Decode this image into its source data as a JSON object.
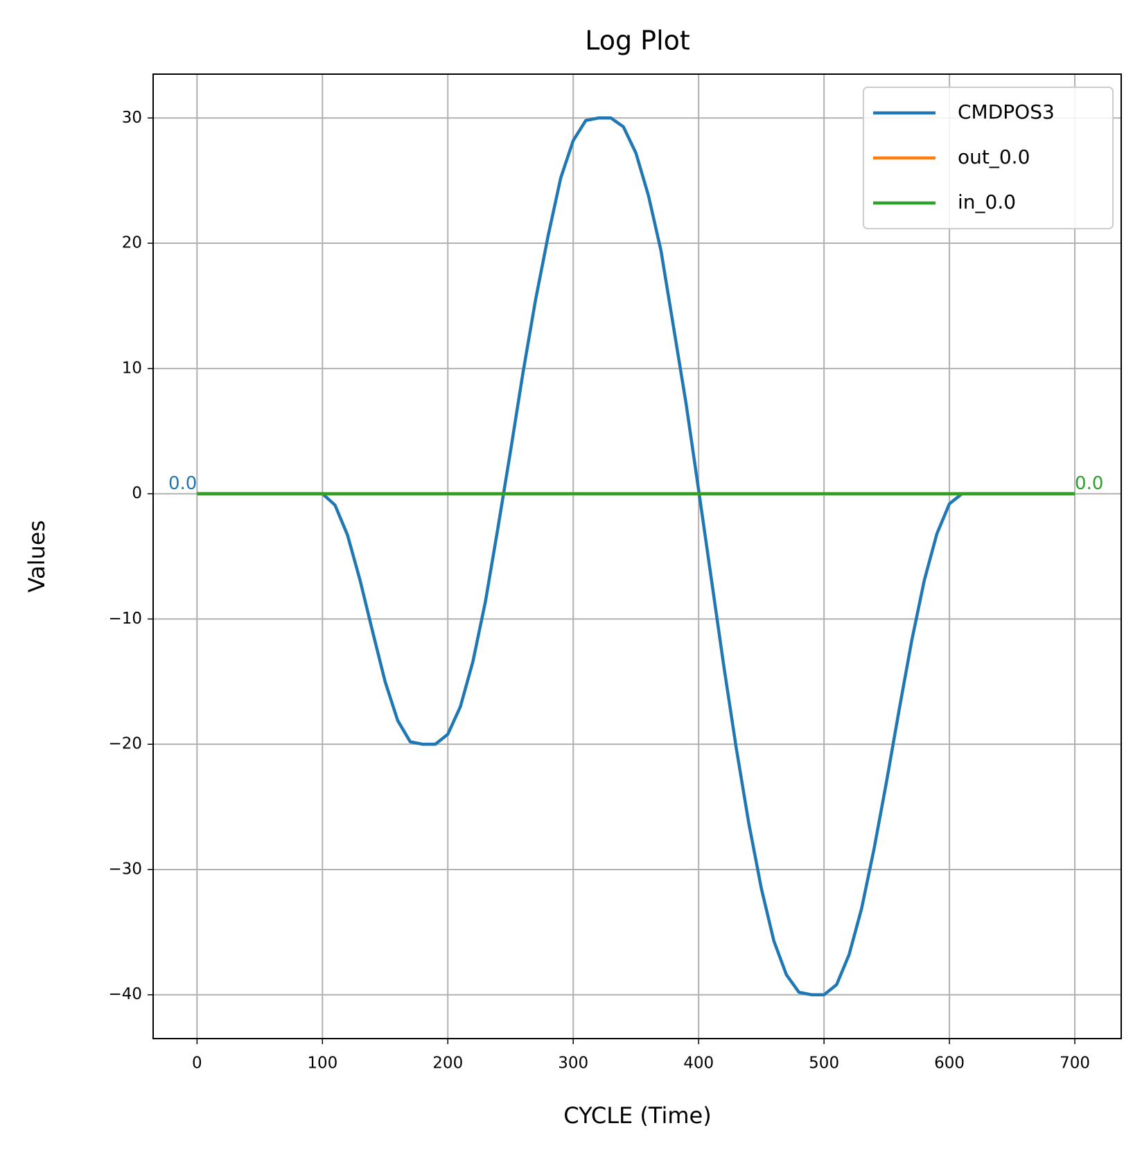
{
  "chart_data": {
    "type": "line",
    "title": "Log Plot",
    "x_label": "CYCLE (Time)",
    "y_label": "Values",
    "x": [
      0,
      10,
      20,
      30,
      40,
      50,
      60,
      70,
      80,
      90,
      100,
      110,
      120,
      130,
      140,
      150,
      160,
      170,
      180,
      190,
      200,
      210,
      220,
      230,
      240,
      250,
      260,
      270,
      280,
      290,
      300,
      310,
      320,
      330,
      340,
      350,
      360,
      370,
      380,
      390,
      400,
      410,
      420,
      430,
      440,
      450,
      460,
      470,
      480,
      490,
      500,
      510,
      520,
      530,
      540,
      550,
      560,
      570,
      580,
      590,
      600,
      610,
      620,
      630,
      640,
      650,
      660,
      670,
      680,
      690,
      700
    ],
    "series": [
      {
        "name": "CMDPOS3",
        "color": "#1f77b4",
        "values": [
          0,
          0,
          0,
          0,
          0,
          0,
          0,
          0,
          0,
          0,
          0,
          -0.9,
          -3.3,
          -6.9,
          -11,
          -15,
          -18.1,
          -19.8,
          -20,
          -20,
          -19.2,
          -17,
          -13.4,
          -8.6,
          -2.7,
          3.4,
          9.7,
          15.5,
          20.6,
          25.2,
          28.2,
          29.8,
          30,
          30,
          29.3,
          27.2,
          23.8,
          19.4,
          13.3,
          7.2,
          0.3,
          -6.7,
          -13.7,
          -20.3,
          -26.3,
          -31.5,
          -35.7,
          -38.4,
          -39.8,
          -40,
          -40,
          -39.2,
          -36.8,
          -33.1,
          -28.3,
          -22.9,
          -17.2,
          -11.7,
          -6.9,
          -3.2,
          -0.8,
          0,
          0,
          0,
          0,
          0,
          0,
          0,
          0,
          0,
          0
        ]
      },
      {
        "name": "out_0.0",
        "color": "#ff7f0e",
        "values": [
          0,
          0,
          0,
          0,
          0,
          0,
          0,
          0,
          0,
          0,
          0,
          0,
          0,
          0,
          0,
          0,
          0,
          0,
          0,
          0,
          0,
          0,
          0,
          0,
          0,
          0,
          0,
          0,
          0,
          0,
          0,
          0,
          0,
          0,
          0,
          0,
          0,
          0,
          0,
          0,
          0,
          0,
          0,
          0,
          0,
          0,
          0,
          0,
          0,
          0,
          0,
          0,
          0,
          0,
          0,
          0,
          0,
          0,
          0,
          0,
          0,
          0,
          0,
          0,
          0,
          0,
          0,
          0,
          0,
          0,
          0
        ]
      },
      {
        "name": "in_0.0",
        "color": "#2ca02c",
        "values": [
          0,
          0,
          0,
          0,
          0,
          0,
          0,
          0,
          0,
          0,
          0,
          0,
          0,
          0,
          0,
          0,
          0,
          0,
          0,
          0,
          0,
          0,
          0,
          0,
          0,
          0,
          0,
          0,
          0,
          0,
          0,
          0,
          0,
          0,
          0,
          0,
          0,
          0,
          0,
          0,
          0,
          0,
          0,
          0,
          0,
          0,
          0,
          0,
          0,
          0,
          0,
          0,
          0,
          0,
          0,
          0,
          0,
          0,
          0,
          0,
          0,
          0,
          0,
          0,
          0,
          0,
          0,
          0,
          0,
          0,
          0
        ]
      }
    ],
    "annotations": [
      {
        "text": "0.0",
        "x": 0,
        "y": 0,
        "color": "#1f77b4",
        "align": "end"
      },
      {
        "text": "0.0",
        "x": 700,
        "y": 0,
        "color": "#2ca02c",
        "align": "start"
      }
    ],
    "xlim": [
      -35,
      737
    ],
    "ylim": [
      -43.5,
      33.5
    ],
    "xticks": [
      0,
      100,
      200,
      300,
      400,
      500,
      600,
      700
    ],
    "yticks": [
      {
        "value": -40,
        "label": "−40"
      },
      {
        "value": -30,
        "label": "−30"
      },
      {
        "value": -20,
        "label": "−20"
      },
      {
        "value": -10,
        "label": "−10"
      },
      0,
      10,
      20,
      30
    ],
    "grid": true,
    "legend": "upper right"
  }
}
